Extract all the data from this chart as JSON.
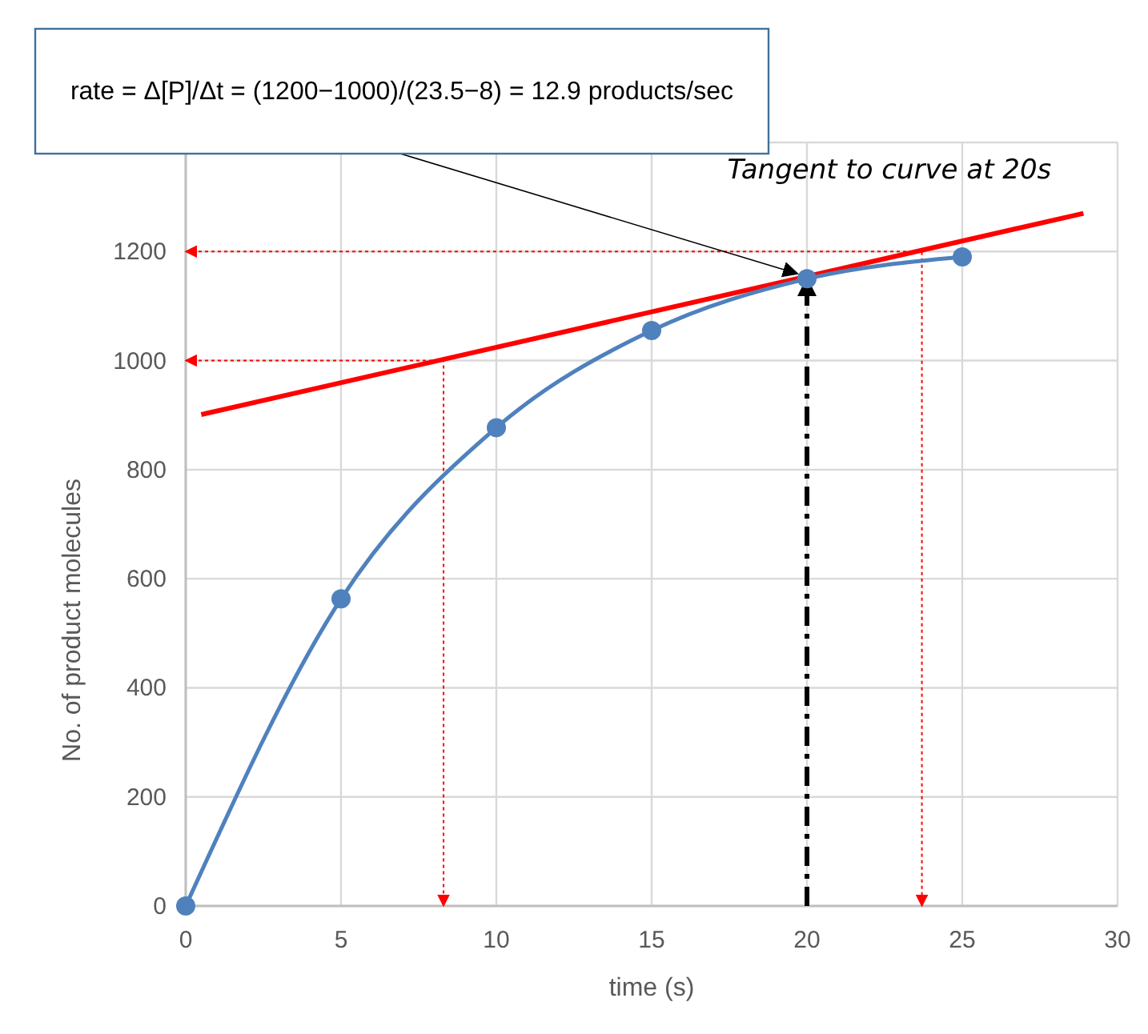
{
  "chart_data": {
    "type": "line",
    "xlabel": "time (s)",
    "ylabel": "No. of product molecules",
    "xlim": [
      0,
      30
    ],
    "xticks": [
      0,
      5,
      10,
      15,
      20,
      25,
      30
    ],
    "ylim": [
      0,
      1400
    ],
    "yticks": [
      0,
      200,
      400,
      600,
      800,
      1000,
      1200,
      {
        "value": 1400,
        "label": null
      }
    ],
    "grid": true,
    "series": [
      {
        "color": "#4f81bd",
        "marker": "circle",
        "line_style": "solid",
        "x": [
          0,
          5,
          10,
          15,
          20,
          25
        ],
        "values": [
          0,
          563,
          877,
          1055,
          1150,
          1190
        ]
      },
      {
        "name": "Tangent to curve at 20s",
        "color": "#ff0000",
        "marker": "none",
        "line_style": "solid",
        "x": [
          0.5,
          28.9
        ],
        "values": [
          901,
          1270
        ]
      },
      {
        "color": "#ff0000",
        "marker": "none",
        "line_style": "dotted",
        "x": [
          0,
          8.3,
          8.3
        ],
        "values": [
          1000,
          1000,
          0
        ]
      },
      {
        "color": "#ff0000",
        "marker": "none",
        "line_style": "dotted",
        "x": [
          0,
          23.7,
          23.7
        ],
        "values": [
          1200,
          1200,
          0
        ]
      },
      {
        "color": "#000000",
        "marker": "none",
        "line_style": "dashed",
        "x": [
          20,
          20
        ],
        "values": [
          0,
          1150
        ]
      }
    ],
    "annotations": [
      "rate = Δ[P]/Δt = (1200−1000)/(23.5−8) = 12.9 products/sec"
    ]
  }
}
